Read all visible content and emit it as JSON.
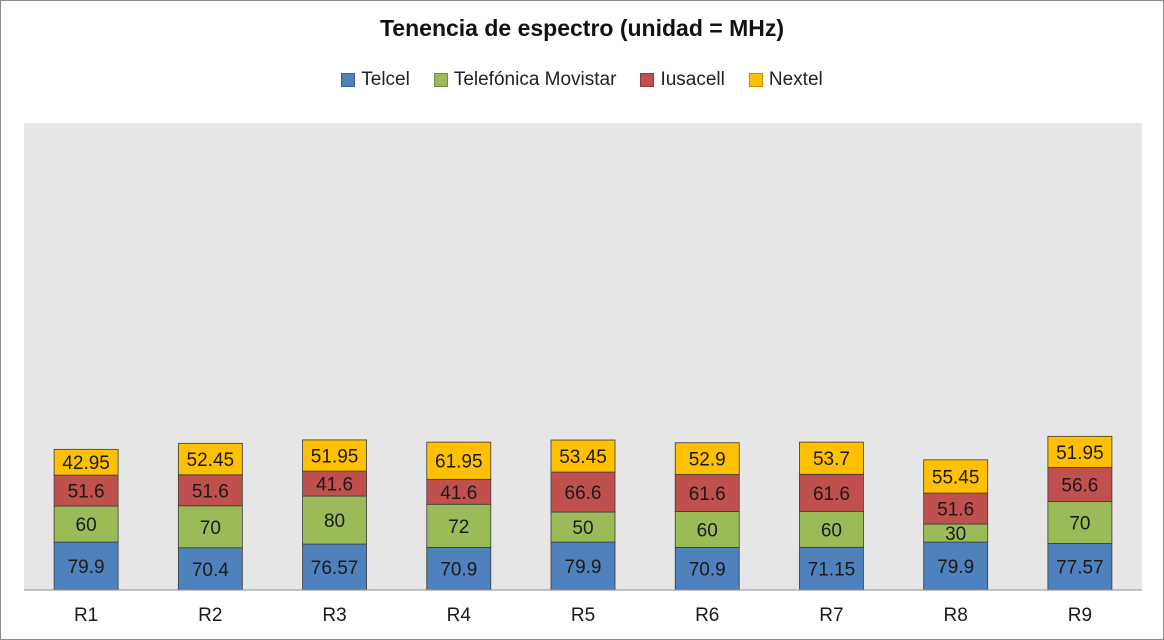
{
  "chart_data": {
    "type": "bar",
    "stacked": true,
    "title": "Tenencia de espectro (unidad = MHz)",
    "xlabel": "",
    "ylabel": "",
    "categories": [
      "R1",
      "R2",
      "R3",
      "R4",
      "R5",
      "R6",
      "R7",
      "R8",
      "R9"
    ],
    "series": [
      {
        "name": "Telcel",
        "color": "#4f81bd",
        "values": [
          79.9,
          70.4,
          76.57,
          70.9,
          79.9,
          70.9,
          71.15,
          79.9,
          77.57
        ]
      },
      {
        "name": "Telefónica Movistar",
        "color": "#9bbb59",
        "values": [
          60,
          70,
          80,
          72,
          50,
          60,
          60,
          30,
          70
        ]
      },
      {
        "name": "Iusacell",
        "color": "#c0504d",
        "values": [
          51.6,
          51.6,
          41.6,
          41.6,
          66.6,
          61.6,
          61.6,
          51.6,
          56.6
        ]
      },
      {
        "name": "Nextel",
        "color": "#ffc000",
        "values": [
          42.95,
          52.45,
          51.95,
          61.95,
          53.45,
          52.9,
          53.7,
          55.45,
          51.95
        ]
      }
    ],
    "ylim": [
      0,
      280
    ],
    "grid": false,
    "legend_position": "top",
    "plot_background": "#e6e6e6"
  }
}
